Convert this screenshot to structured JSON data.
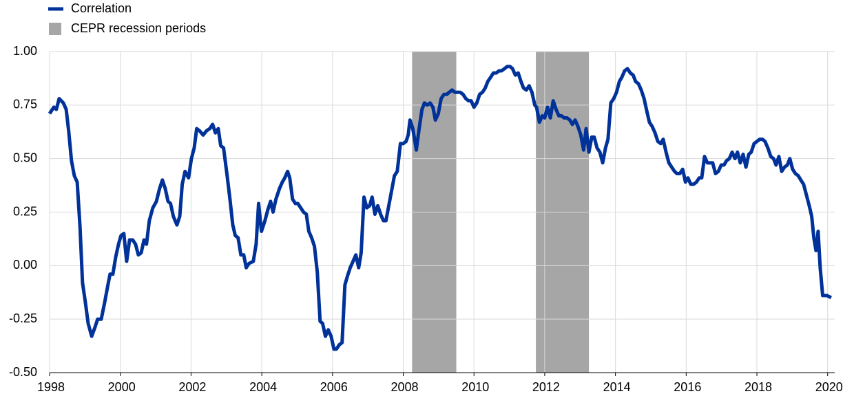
{
  "chart_data": {
    "type": "line",
    "series": [
      {
        "name": "Correlation",
        "color": "#003299",
        "x": [
          1998.0,
          1998.12,
          1998.19,
          1998.27,
          1998.39,
          1998.47,
          1998.54,
          1998.62,
          1998.7,
          1998.78,
          1998.86,
          1998.93,
          1999.01,
          1999.09,
          1999.19,
          1999.28,
          1999.36,
          1999.46,
          1999.56,
          1999.65,
          1999.71,
          1999.79,
          1999.87,
          1999.95,
          2000.02,
          2000.1,
          2000.18,
          2000.26,
          2000.35,
          2000.43,
          2000.51,
          2000.59,
          2000.67,
          2000.74,
          2000.82,
          2000.92,
          2001.02,
          2001.11,
          2001.19,
          2001.27,
          2001.35,
          2001.42,
          2001.5,
          2001.6,
          2001.68,
          2001.75,
          2001.83,
          2001.93,
          2002.01,
          2002.09,
          2002.16,
          2002.24,
          2002.34,
          2002.44,
          2002.53,
          2002.61,
          2002.69,
          2002.77,
          2002.84,
          2002.92,
          2003.02,
          2003.1,
          2003.18,
          2003.25,
          2003.33,
          2003.41,
          2003.49,
          2003.56,
          2003.64,
          2003.76,
          2003.84,
          2003.91,
          2003.99,
          2004.09,
          2004.17,
          2004.25,
          2004.32,
          2004.4,
          2004.5,
          2004.58,
          2004.65,
          2004.73,
          2004.79,
          2004.87,
          2004.95,
          2005.02,
          2005.1,
          2005.18,
          2005.26,
          2005.33,
          2005.41,
          2005.49,
          2005.57,
          2005.65,
          2005.72,
          2005.8,
          2005.88,
          2005.96,
          2006.04,
          2006.11,
          2006.19,
          2006.27,
          2006.35,
          2006.42,
          2006.5,
          2006.58,
          2006.66,
          2006.74,
          2006.81,
          2006.89,
          2006.97,
          2007.05,
          2007.12,
          2007.2,
          2007.28,
          2007.36,
          2007.44,
          2007.51,
          2007.59,
          2007.67,
          2007.75,
          2007.83,
          2007.92,
          2008.0,
          2008.08,
          2008.14,
          2008.19,
          2008.27,
          2008.37,
          2008.45,
          2008.53,
          2008.6,
          2008.68,
          2008.76,
          2008.84,
          2008.91,
          2008.99,
          2009.07,
          2009.15,
          2009.23,
          2009.3,
          2009.38,
          2009.46,
          2009.54,
          2009.61,
          2009.69,
          2009.77,
          2009.85,
          2009.92,
          2010.0,
          2010.08,
          2010.16,
          2010.24,
          2010.32,
          2010.39,
          2010.47,
          2010.55,
          2010.63,
          2010.71,
          2010.78,
          2010.86,
          2010.94,
          2011.02,
          2011.09,
          2011.17,
          2011.25,
          2011.33,
          2011.4,
          2011.48,
          2011.56,
          2011.64,
          2011.72,
          2011.77,
          2011.85,
          2011.93,
          2012.0,
          2012.08,
          2012.16,
          2012.24,
          2012.32,
          2012.4,
          2012.47,
          2012.55,
          2012.63,
          2012.71,
          2012.78,
          2012.86,
          2012.94,
          2013.02,
          2013.1,
          2013.17,
          2013.25,
          2013.33,
          2013.4,
          2013.48,
          2013.56,
          2013.64,
          2013.72,
          2013.79,
          2013.87,
          2013.95,
          2014.03,
          2014.11,
          2014.18,
          2014.26,
          2014.34,
          2014.42,
          2014.5,
          2014.57,
          2014.65,
          2014.73,
          2014.81,
          2014.89,
          2014.96,
          2015.04,
          2015.12,
          2015.2,
          2015.28,
          2015.35,
          2015.43,
          2015.51,
          2015.59,
          2015.67,
          2015.74,
          2015.82,
          2015.9,
          2015.98,
          2016.05,
          2016.13,
          2016.21,
          2016.29,
          2016.37,
          2016.44,
          2016.52,
          2016.6,
          2016.68,
          2016.75,
          2016.83,
          2016.91,
          2016.99,
          2017.07,
          2017.14,
          2017.22,
          2017.3,
          2017.38,
          2017.45,
          2017.53,
          2017.61,
          2017.69,
          2017.77,
          2017.84,
          2017.92,
          2018.0,
          2018.08,
          2018.16,
          2018.23,
          2018.31,
          2018.39,
          2018.47,
          2018.54,
          2018.62,
          2018.7,
          2018.78,
          2018.86,
          2018.93,
          2019.01,
          2019.09,
          2019.17,
          2019.24,
          2019.32,
          2019.4,
          2019.48,
          2019.55,
          2019.61,
          2019.67,
          2019.73,
          2019.79,
          2019.86,
          2019.98,
          2020.1
        ],
        "values": [
          0.71,
          0.74,
          0.73,
          0.78,
          0.76,
          0.73,
          0.63,
          0.49,
          0.42,
          0.39,
          0.18,
          -0.08,
          -0.17,
          -0.27,
          -0.33,
          -0.29,
          -0.25,
          -0.25,
          -0.17,
          -0.09,
          -0.04,
          -0.04,
          0.04,
          0.1,
          0.14,
          0.15,
          0.02,
          0.12,
          0.12,
          0.1,
          0.05,
          0.06,
          0.12,
          0.1,
          0.21,
          0.27,
          0.3,
          0.36,
          0.4,
          0.36,
          0.3,
          0.29,
          0.23,
          0.19,
          0.23,
          0.38,
          0.44,
          0.41,
          0.5,
          0.55,
          0.64,
          0.63,
          0.61,
          0.63,
          0.64,
          0.66,
          0.62,
          0.64,
          0.56,
          0.55,
          0.42,
          0.31,
          0.19,
          0.14,
          0.13,
          0.05,
          0.05,
          -0.01,
          0.01,
          0.02,
          0.1,
          0.29,
          0.16,
          0.21,
          0.26,
          0.3,
          0.25,
          0.31,
          0.36,
          0.39,
          0.41,
          0.44,
          0.41,
          0.31,
          0.29,
          0.29,
          0.27,
          0.25,
          0.24,
          0.16,
          0.13,
          0.09,
          -0.03,
          -0.26,
          -0.27,
          -0.33,
          -0.3,
          -0.33,
          -0.39,
          -0.39,
          -0.37,
          -0.36,
          -0.09,
          -0.05,
          -0.01,
          0.02,
          0.05,
          -0.01,
          0.06,
          0.32,
          0.27,
          0.28,
          0.32,
          0.24,
          0.28,
          0.24,
          0.21,
          0.21,
          0.28,
          0.35,
          0.42,
          0.44,
          0.57,
          0.57,
          0.58,
          0.61,
          0.68,
          0.64,
          0.54,
          0.64,
          0.73,
          0.76,
          0.75,
          0.76,
          0.74,
          0.68,
          0.71,
          0.78,
          0.8,
          0.8,
          0.81,
          0.82,
          0.81,
          0.81,
          0.81,
          0.8,
          0.78,
          0.77,
          0.77,
          0.74,
          0.76,
          0.8,
          0.81,
          0.83,
          0.86,
          0.88,
          0.9,
          0.9,
          0.91,
          0.91,
          0.92,
          0.93,
          0.93,
          0.92,
          0.89,
          0.9,
          0.86,
          0.83,
          0.82,
          0.84,
          0.81,
          0.75,
          0.74,
          0.67,
          0.7,
          0.69,
          0.74,
          0.69,
          0.77,
          0.73,
          0.7,
          0.7,
          0.69,
          0.69,
          0.68,
          0.66,
          0.68,
          0.65,
          0.61,
          0.54,
          0.64,
          0.53,
          0.6,
          0.6,
          0.55,
          0.53,
          0.48,
          0.55,
          0.59,
          0.76,
          0.78,
          0.81,
          0.86,
          0.88,
          0.91,
          0.92,
          0.9,
          0.89,
          0.86,
          0.85,
          0.82,
          0.78,
          0.72,
          0.67,
          0.65,
          0.62,
          0.58,
          0.57,
          0.59,
          0.53,
          0.48,
          0.46,
          0.44,
          0.43,
          0.43,
          0.45,
          0.39,
          0.41,
          0.38,
          0.38,
          0.39,
          0.41,
          0.41,
          0.51,
          0.48,
          0.48,
          0.48,
          0.43,
          0.44,
          0.47,
          0.47,
          0.49,
          0.5,
          0.53,
          0.5,
          0.53,
          0.48,
          0.52,
          0.46,
          0.52,
          0.53,
          0.57,
          0.58,
          0.59,
          0.59,
          0.58,
          0.55,
          0.51,
          0.5,
          0.47,
          0.51,
          0.44,
          0.46,
          0.47,
          0.5,
          0.45,
          0.43,
          0.42,
          0.4,
          0.38,
          0.33,
          0.28,
          0.23,
          0.13,
          0.07,
          0.16,
          -0.01,
          -0.14,
          -0.14,
          -0.15
        ]
      }
    ],
    "recessions": {
      "name": "CEPR recession periods",
      "color": "#a6a6a6",
      "periods": [
        [
          2008.25,
          2009.5
        ],
        [
          2011.75,
          2013.25
        ]
      ]
    },
    "xlim": [
      1998,
      2020.2
    ],
    "xticks": [
      1998,
      2000,
      2002,
      2004,
      2006,
      2008,
      2010,
      2012,
      2014,
      2016,
      2018,
      2020
    ],
    "ylim": [
      -0.5,
      1
    ],
    "yticks": [
      {
        "value": -0.5,
        "label": "-0.50"
      },
      {
        "value": -0.25,
        "label": "-0.25"
      },
      {
        "value": 0,
        "label": "0.00"
      },
      {
        "value": 0.25,
        "label": "0.25"
      },
      {
        "value": 0.5,
        "label": "0.50"
      },
      {
        "value": 0.75,
        "label": "0.75"
      },
      {
        "value": 1,
        "label": "1.00"
      }
    ],
    "grid": true,
    "legend": "top-left"
  }
}
